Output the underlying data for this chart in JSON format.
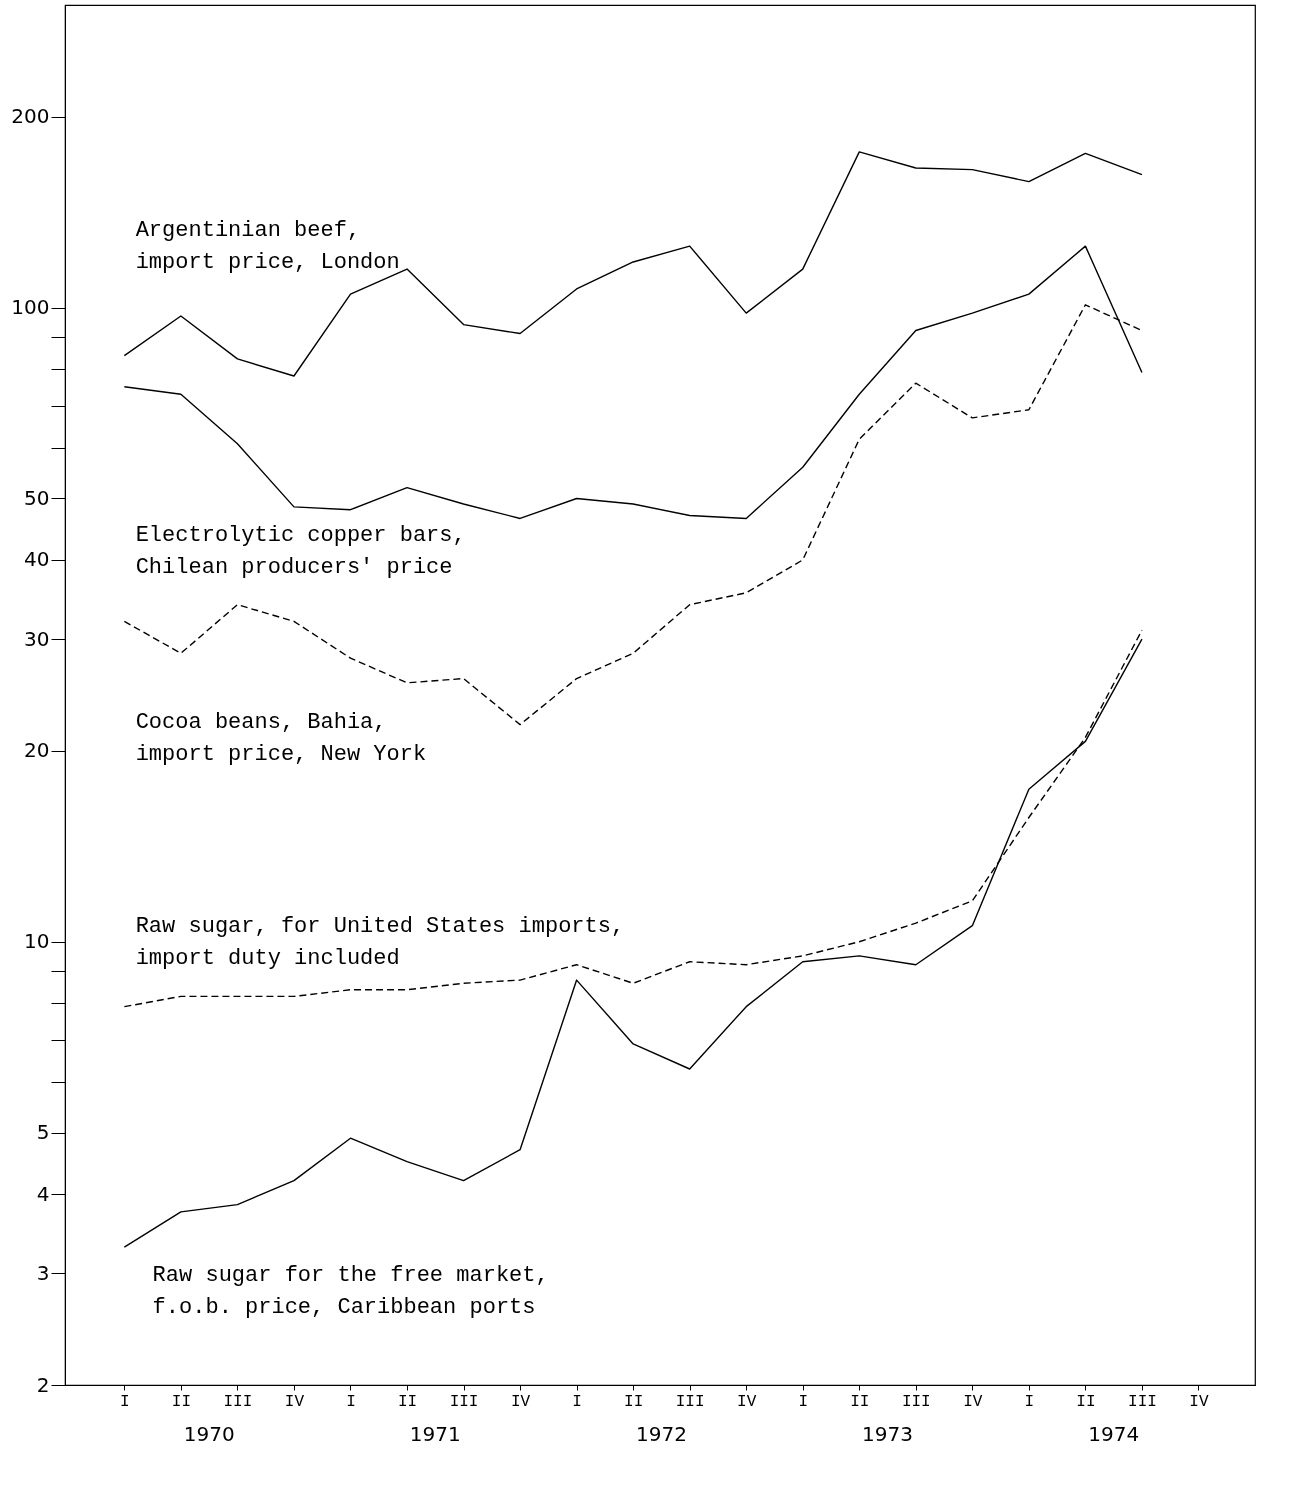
{
  "chart_data": {
    "type": "line",
    "log": "y",
    "grid": false,
    "categories": [
      "I",
      "II",
      "III",
      "IV",
      "I",
      "II",
      "III",
      "IV",
      "I",
      "II",
      "III",
      "IV",
      "I",
      "II",
      "III",
      "IV",
      "I",
      "II",
      "III",
      "IV"
    ],
    "annotations": [
      "1970",
      "1971",
      "1972",
      "1973",
      "1974"
    ],
    "ylim": [
      2,
      300
    ],
    "yticks": [
      2,
      3,
      4,
      5,
      {
        "value": 6,
        "label": null
      },
      {
        "value": 7,
        "label": null
      },
      {
        "value": 8,
        "label": null
      },
      {
        "value": 9,
        "label": null
      },
      10,
      20,
      30,
      40,
      50,
      {
        "value": 60,
        "label": null
      },
      {
        "value": 70,
        "label": null
      },
      {
        "value": 80,
        "label": null
      },
      {
        "value": 90,
        "label": null
      },
      100,
      200
    ],
    "series": [
      {
        "name": "Argentinian beef,\nimport price, London",
        "color": "#000000",
        "line_style": "solid",
        "values": [
          84,
          97,
          83,
          78,
          105,
          115,
          94,
          91,
          107,
          118,
          125,
          98,
          115,
          176,
          166,
          165,
          158,
          175,
          162,
          null
        ]
      },
      {
        "name": "Electrolytic copper bars,\nChilean producers' price",
        "color": "#000000",
        "line_style": "solid",
        "values": [
          75,
          73,
          61,
          48.5,
          48,
          52,
          49,
          46.5,
          50,
          49,
          47,
          46.5,
          56,
          73,
          92,
          98,
          105,
          125,
          79,
          null
        ]
      },
      {
        "name": "Cocoa beans, Bahia,\nimport price, New York",
        "color": "#000000",
        "line_style": "dashed",
        "values": [
          32,
          28.5,
          34,
          32,
          28,
          25.6,
          26,
          22,
          26,
          28.5,
          34,
          35.5,
          40,
          62,
          76,
          67,
          69,
          101,
          92,
          null
        ]
      },
      {
        "name": "Raw sugar, for United States imports,\nimport duty included",
        "color": "#000000",
        "line_style": "dashed",
        "values": [
          7.9,
          8.2,
          8.2,
          8.2,
          8.4,
          8.4,
          8.6,
          8.7,
          9.2,
          8.6,
          9.3,
          9.2,
          9.5,
          10,
          10.7,
          11.6,
          15.7,
          21,
          31,
          null
        ]
      },
      {
        "name": "Raw sugar for the free market,\nf.o.b. price, Caribbean ports",
        "color": "#000000",
        "line_style": "solid",
        "values": [
          3.3,
          3.75,
          3.85,
          4.2,
          4.9,
          4.5,
          4.2,
          4.7,
          8.7,
          6.9,
          6.3,
          7.9,
          9.3,
          9.5,
          9.2,
          10.6,
          17.4,
          20.7,
          30,
          null
        ]
      }
    ]
  }
}
